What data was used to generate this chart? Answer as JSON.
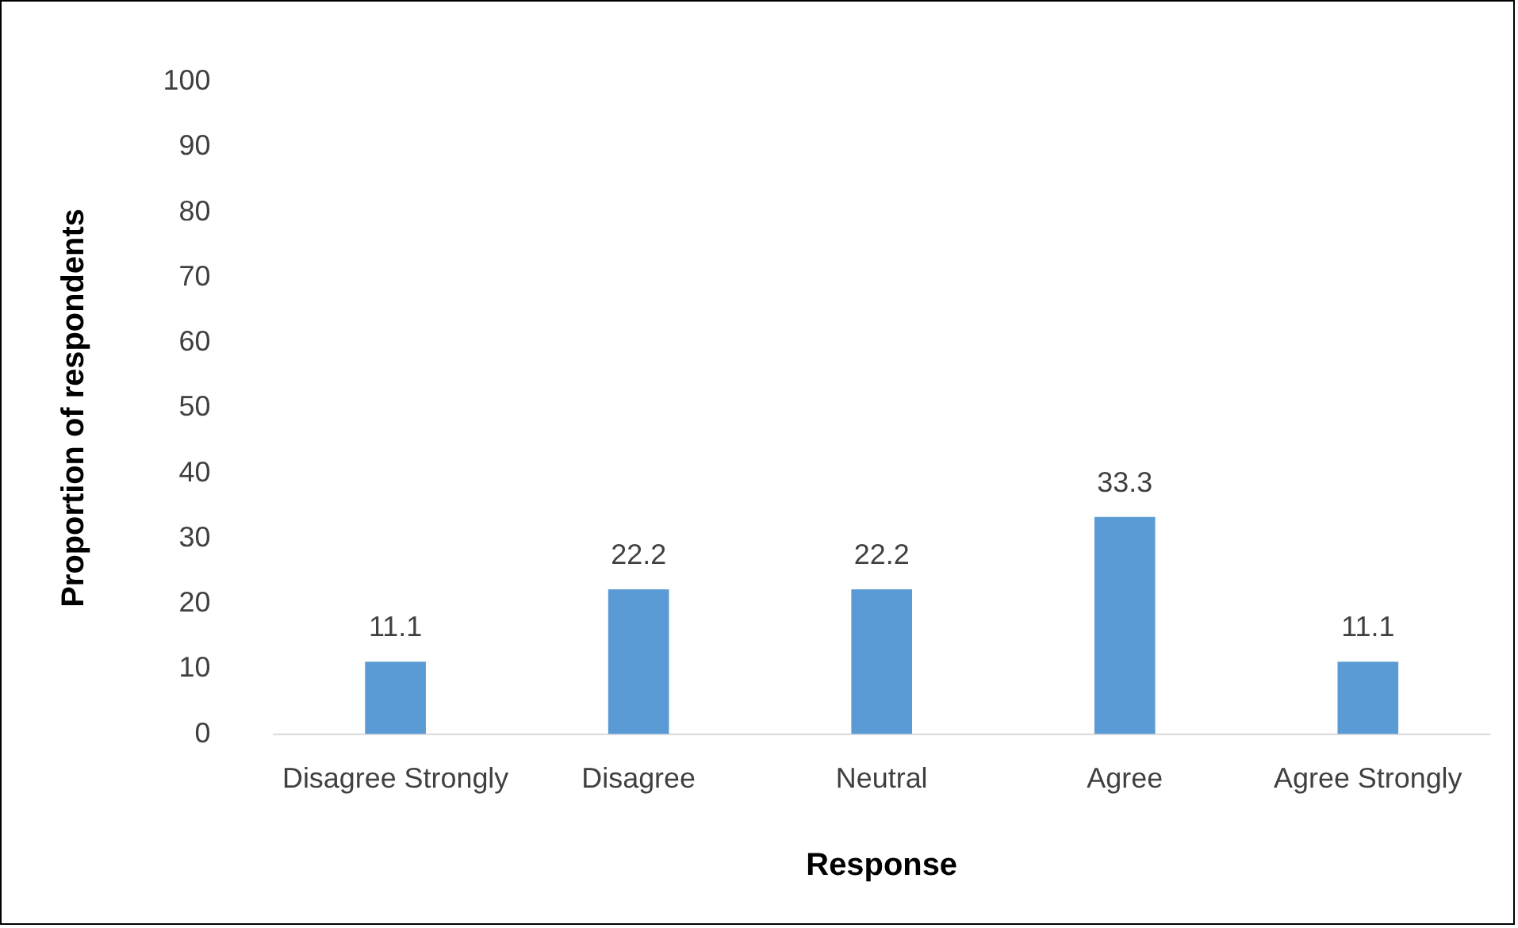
{
  "chart_data": {
    "type": "bar",
    "categories": [
      "Disagree Strongly",
      "Disagree",
      "Neutral",
      "Agree",
      "Agree Strongly"
    ],
    "values": [
      11.1,
      22.2,
      22.2,
      33.3,
      11.1
    ],
    "color": "#5b9bd5",
    "xlabel": "Response",
    "ylabel": "Proportion of respondents",
    "ylim": [
      0,
      100
    ],
    "yticks": [
      0,
      10,
      20,
      30,
      40,
      50,
      60,
      70,
      80,
      90,
      100
    ],
    "grid": false,
    "legend": false,
    "data_labels": true
  }
}
